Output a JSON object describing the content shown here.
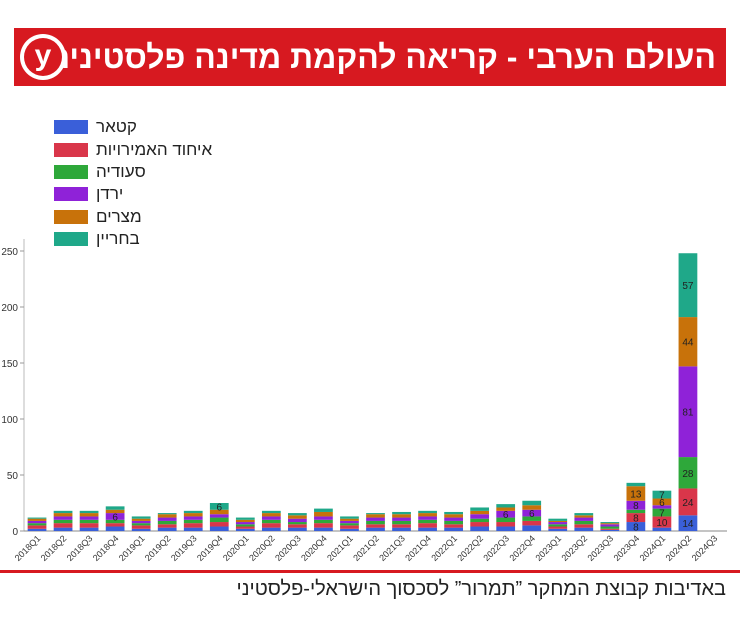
{
  "header": {
    "title": "העולם הערבי - קריאה להקמת מדינה פלסטינית",
    "logo_letter": "y"
  },
  "footer": {
    "credit": "באדיבות קבוצת המחקר ”תמרור” לסכסוך הישראלי-פלסטיני"
  },
  "colors": {
    "brand": "#d71920"
  },
  "chart_data": {
    "type": "bar",
    "stacked": true,
    "title": "",
    "xlabel": "",
    "ylabel": "",
    "ylim": [
      0,
      260
    ],
    "yticks": [
      0,
      50,
      100,
      150,
      200,
      250
    ],
    "legend_position": "top-left",
    "categories": [
      "2018Q1",
      "2018Q2",
      "2018Q3",
      "2018Q4",
      "2019Q1",
      "2019Q2",
      "2019Q3",
      "2019Q4",
      "2020Q1",
      "2020Q2",
      "2020Q3",
      "2020Q4",
      "2021Q1",
      "2021Q2",
      "2021Q3",
      "2021Q4",
      "2022Q1",
      "2022Q2",
      "2022Q3",
      "2022Q4",
      "2023Q1",
      "2023Q2",
      "2023Q3",
      "2023Q4",
      "2024Q1",
      "2024Q2",
      "2024Q3"
    ],
    "series": [
      {
        "name": "קטאר",
        "color": "#3a5fd9",
        "values": [
          2,
          3,
          3,
          4,
          2,
          3,
          3,
          4,
          2,
          3,
          3,
          3,
          2,
          3,
          3,
          3,
          3,
          4,
          4,
          5,
          2,
          3,
          1,
          8,
          3,
          14,
          0
        ]
      },
      {
        "name": "איחוד האמירויות",
        "color": "#d9364a",
        "values": [
          3,
          4,
          4,
          3,
          3,
          3,
          4,
          4,
          2,
          4,
          3,
          4,
          3,
          3,
          3,
          4,
          3,
          4,
          4,
          4,
          2,
          3,
          1,
          8,
          10,
          24,
          0
        ]
      },
      {
        "name": "סעודיה",
        "color": "#2ea83a",
        "values": [
          2,
          3,
          3,
          3,
          2,
          3,
          3,
          4,
          2,
          3,
          2,
          3,
          2,
          3,
          3,
          3,
          3,
          3,
          4,
          4,
          2,
          3,
          2,
          3,
          7,
          28,
          0
        ]
      },
      {
        "name": "ירדן",
        "color": "#8f22d8",
        "values": [
          2,
          3,
          3,
          6,
          2,
          3,
          3,
          3,
          2,
          3,
          3,
          3,
          2,
          3,
          3,
          3,
          3,
          4,
          6,
          6,
          2,
          3,
          2,
          8,
          3,
          81,
          0
        ]
      },
      {
        "name": "מצרים",
        "color": "#c8720a",
        "values": [
          2,
          3,
          3,
          3,
          2,
          3,
          3,
          4,
          2,
          3,
          3,
          4,
          2,
          3,
          3,
          3,
          3,
          3,
          3,
          4,
          1,
          2,
          1,
          13,
          6,
          44,
          0
        ]
      },
      {
        "name": "בחריין",
        "color": "#1fa889",
        "values": [
          1,
          2,
          2,
          3,
          2,
          1,
          2,
          6,
          2,
          2,
          2,
          3,
          2,
          1,
          2,
          2,
          2,
          3,
          3,
          4,
          2,
          2,
          1,
          3,
          7,
          57,
          0
        ]
      }
    ],
    "data_labels": [
      {
        "category": "2018Q4",
        "series": "ירדן",
        "text": "6"
      },
      {
        "category": "2019Q4",
        "series": "בחריין",
        "text": "6"
      },
      {
        "category": "2022Q3",
        "series": "ירדן",
        "text": "6"
      },
      {
        "category": "2022Q4",
        "series": "ירדן",
        "text": "6"
      },
      {
        "category": "2023Q4",
        "series": "קטאר",
        "text": "8"
      },
      {
        "category": "2023Q4",
        "series": "איחוד האמירויות",
        "text": "8"
      },
      {
        "category": "2023Q4",
        "series": "ירדן",
        "text": "8"
      },
      {
        "category": "2023Q4",
        "series": "מצרים",
        "text": "13"
      },
      {
        "category": "2024Q1",
        "series": "איחוד האמירויות",
        "text": "10"
      },
      {
        "category": "2024Q1",
        "series": "סעודיה",
        "text": "7"
      },
      {
        "category": "2024Q1",
        "series": "מצרים",
        "text": "6"
      },
      {
        "category": "2024Q1",
        "series": "בחריין",
        "text": "7"
      },
      {
        "category": "2024Q2",
        "series": "קטאר",
        "text": "14"
      },
      {
        "category": "2024Q2",
        "series": "איחוד האמירויות",
        "text": "24"
      },
      {
        "category": "2024Q2",
        "series": "סעודיה",
        "text": "28"
      },
      {
        "category": "2024Q2",
        "series": "ירדן",
        "text": "81"
      },
      {
        "category": "2024Q2",
        "series": "מצרים",
        "text": "44"
      },
      {
        "category": "2024Q2",
        "series": "בחריין",
        "text": "57"
      }
    ]
  }
}
